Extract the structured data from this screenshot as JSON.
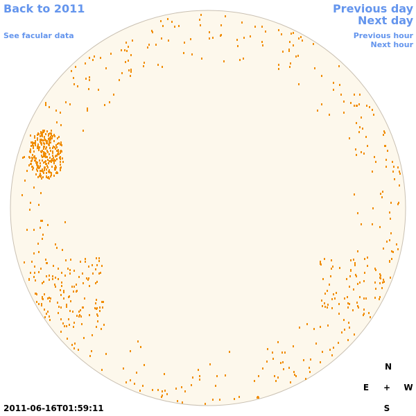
{
  "links": {
    "back": "Back to 2011",
    "facular": "See facular data",
    "previous_day": "Previous day",
    "next_day": "Next day",
    "previous_hour": "Previous hour",
    "next_hour": "Next hour"
  },
  "timestamp": "2011-06-16T01:59:11",
  "compass": {
    "north": "N",
    "east": "E",
    "center": "+",
    "west": "W",
    "south": "S"
  }
}
